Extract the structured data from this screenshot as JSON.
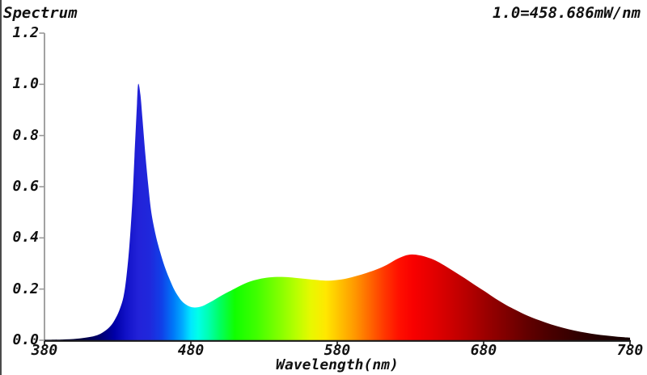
{
  "header": {
    "title": "Spectrum",
    "scale_note": "1.0=458.686mW/nm"
  },
  "axes": {
    "x": {
      "label": "Wavelength(nm)",
      "min": 380,
      "max": 780,
      "ticks": [
        380,
        480,
        580,
        680,
        780
      ]
    },
    "y": {
      "min": 0.0,
      "max": 1.2,
      "ticks": [
        "0.0",
        "0.2",
        "0.4",
        "0.6",
        "0.8",
        "1.0",
        "1.2"
      ]
    }
  },
  "chart_data": {
    "type": "area",
    "title": "Spectrum",
    "subtitle": "1.0=458.686mW/nm",
    "xlabel": "Wavelength(nm)",
    "ylabel": "",
    "xlim": [
      380,
      780
    ],
    "ylim": [
      0,
      1.2
    ],
    "grid": false,
    "legend": false,
    "points": [
      [
        380,
        0.002
      ],
      [
        392,
        0.003
      ],
      [
        402,
        0.006
      ],
      [
        410,
        0.012
      ],
      [
        416,
        0.02
      ],
      [
        421,
        0.035
      ],
      [
        425,
        0.055
      ],
      [
        428,
        0.08
      ],
      [
        431,
        0.115
      ],
      [
        434,
        0.17
      ],
      [
        436,
        0.25
      ],
      [
        438,
        0.37
      ],
      [
        440,
        0.54
      ],
      [
        441.5,
        0.72
      ],
      [
        443,
        0.9
      ],
      [
        444,
        1.0
      ],
      [
        445.5,
        0.96
      ],
      [
        447,
        0.86
      ],
      [
        449,
        0.72
      ],
      [
        451,
        0.6
      ],
      [
        453,
        0.5
      ],
      [
        456,
        0.41
      ],
      [
        459,
        0.345
      ],
      [
        462,
        0.29
      ],
      [
        465,
        0.245
      ],
      [
        468,
        0.205
      ],
      [
        471,
        0.175
      ],
      [
        474,
        0.152
      ],
      [
        477,
        0.138
      ],
      [
        480,
        0.13
      ],
      [
        483,
        0.128
      ],
      [
        487,
        0.132
      ],
      [
        491,
        0.142
      ],
      [
        496,
        0.158
      ],
      [
        501,
        0.175
      ],
      [
        506,
        0.19
      ],
      [
        511,
        0.205
      ],
      [
        517,
        0.222
      ],
      [
        523,
        0.234
      ],
      [
        530,
        0.243
      ],
      [
        537,
        0.247
      ],
      [
        544,
        0.247
      ],
      [
        551,
        0.244
      ],
      [
        558,
        0.24
      ],
      [
        565,
        0.236
      ],
      [
        572,
        0.233
      ],
      [
        579,
        0.235
      ],
      [
        586,
        0.241
      ],
      [
        593,
        0.251
      ],
      [
        600,
        0.263
      ],
      [
        607,
        0.277
      ],
      [
        614,
        0.295
      ],
      [
        620,
        0.315
      ],
      [
        626,
        0.33
      ],
      [
        631,
        0.335
      ],
      [
        636,
        0.332
      ],
      [
        641,
        0.325
      ],
      [
        647,
        0.312
      ],
      [
        653,
        0.293
      ],
      [
        660,
        0.268
      ],
      [
        667,
        0.243
      ],
      [
        674,
        0.216
      ],
      [
        681,
        0.19
      ],
      [
        688,
        0.163
      ],
      [
        695,
        0.139
      ],
      [
        702,
        0.118
      ],
      [
        710,
        0.096
      ],
      [
        718,
        0.078
      ],
      [
        726,
        0.062
      ],
      [
        734,
        0.049
      ],
      [
        742,
        0.038
      ],
      [
        750,
        0.029
      ],
      [
        758,
        0.022
      ],
      [
        766,
        0.017
      ],
      [
        773,
        0.013
      ],
      [
        780,
        0.01
      ]
    ],
    "fill_gradient_nm": [
      {
        "nm": 380,
        "color": "#00001a"
      },
      {
        "nm": 405,
        "color": "#000040"
      },
      {
        "nm": 418,
        "color": "#000070"
      },
      {
        "nm": 428,
        "color": "#0000a8"
      },
      {
        "nm": 436,
        "color": "#1212c8"
      },
      {
        "nm": 444,
        "color": "#2222d8"
      },
      {
        "nm": 452,
        "color": "#2028dc"
      },
      {
        "nm": 460,
        "color": "#1040e8"
      },
      {
        "nm": 468,
        "color": "#0078f8"
      },
      {
        "nm": 474,
        "color": "#00a8ff"
      },
      {
        "nm": 480,
        "color": "#00e8ff"
      },
      {
        "nm": 485,
        "color": "#00ffe8"
      },
      {
        "nm": 492,
        "color": "#00ffb0"
      },
      {
        "nm": 500,
        "color": "#00ff60"
      },
      {
        "nm": 510,
        "color": "#10ff00"
      },
      {
        "nm": 525,
        "color": "#40ff00"
      },
      {
        "nm": 540,
        "color": "#80ff00"
      },
      {
        "nm": 552,
        "color": "#b8ff00"
      },
      {
        "nm": 562,
        "color": "#e8f800"
      },
      {
        "nm": 572,
        "color": "#ffe800"
      },
      {
        "nm": 582,
        "color": "#ffc000"
      },
      {
        "nm": 592,
        "color": "#ff9800"
      },
      {
        "nm": 602,
        "color": "#ff6800"
      },
      {
        "nm": 612,
        "color": "#ff3800"
      },
      {
        "nm": 622,
        "color": "#ff1000"
      },
      {
        "nm": 632,
        "color": "#f80000"
      },
      {
        "nm": 645,
        "color": "#e40000"
      },
      {
        "nm": 658,
        "color": "#cc0000"
      },
      {
        "nm": 670,
        "color": "#b40000"
      },
      {
        "nm": 682,
        "color": "#9a0000"
      },
      {
        "nm": 695,
        "color": "#800000"
      },
      {
        "nm": 710,
        "color": "#620000"
      },
      {
        "nm": 725,
        "color": "#4a0000"
      },
      {
        "nm": 742,
        "color": "#340000"
      },
      {
        "nm": 760,
        "color": "#220000"
      },
      {
        "nm": 780,
        "color": "#140000"
      }
    ]
  },
  "layout_colors": {
    "background": "#ffffff",
    "text": "#111111",
    "x_axis": "#1a1a1a",
    "y_axis": "#8a8a8a",
    "y_tick": "#9a9a9a",
    "left_border": "#4a4a4a"
  }
}
